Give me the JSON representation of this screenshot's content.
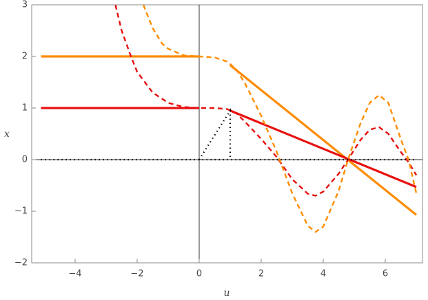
{
  "chart_data": {
    "type": "line",
    "x_label": "u",
    "y_label": "x",
    "xlim": [
      -5.4,
      7.2
    ],
    "ylim": [
      -2,
      3
    ],
    "xticks": [
      {
        "value": -4,
        "label": "−4"
      },
      {
        "value": -2,
        "label": "−2"
      },
      0,
      2,
      4,
      6
    ],
    "yticks": [
      {
        "value": -2,
        "label": "−2"
      },
      {
        "value": -1,
        "label": "−1"
      },
      0,
      1,
      2,
      3
    ],
    "series": [
      {
        "color": "#ff8c00",
        "style": "solid",
        "width": 3.2,
        "x": [
          -5.1,
          0,
          0.5,
          1,
          7
        ],
        "values": [
          2,
          2,
          null,
          1.83,
          -1.07
        ]
      },
      {
        "color": "#e81010",
        "style": "solid",
        "width": 3.2,
        "x": [
          -5.1,
          0,
          0.5,
          1,
          7
        ],
        "values": [
          1,
          1,
          null,
          0.95,
          -0.53
        ]
      },
      {
        "color": "#e81010",
        "style": "dashed",
        "width": 2.4,
        "x": [
          -2.7,
          -2.5,
          -2.2,
          -2.0,
          -1.5,
          -1.0,
          -0.5,
          0,
          0.5,
          0.9,
          1.2,
          1.5,
          2.0,
          2.5,
          3.0,
          3.5,
          3.75,
          4.0,
          4.5,
          4.8,
          5.2,
          5.5,
          5.8,
          6.1,
          6.5,
          6.75,
          7.0
        ],
        "values": [
          3,
          2.5,
          2.0,
          1.7,
          1.3,
          1.1,
          1.02,
          1.0,
          1.0,
          0.98,
          0.9,
          0.72,
          0.4,
          0.05,
          -0.38,
          -0.66,
          -0.7,
          -0.62,
          -0.27,
          0,
          0.38,
          0.58,
          0.63,
          0.5,
          0.15,
          -0.05,
          -0.3
        ]
      },
      {
        "color": "#ff8c00",
        "style": "dashed",
        "width": 2.4,
        "x": [
          -1.8,
          -1.5,
          -1.2,
          -1.0,
          -0.5,
          0,
          0.5,
          0.9,
          1.2,
          1.5,
          2.0,
          2.5,
          3.0,
          3.5,
          3.75,
          4.0,
          4.5,
          4.8,
          5.2,
          5.5,
          5.8,
          6.1,
          6.5,
          6.75,
          7.0
        ],
        "values": [
          3,
          2.55,
          2.25,
          2.15,
          2.02,
          2.0,
          1.98,
          1.9,
          1.75,
          1.45,
          0.85,
          0.15,
          -0.65,
          -1.28,
          -1.4,
          -1.3,
          -0.6,
          0,
          0.7,
          1.1,
          1.25,
          1.1,
          0.4,
          0,
          -0.65
        ]
      },
      {
        "color": "#000000",
        "style": "dotted",
        "width": 2.2,
        "x": [
          -5.1,
          7
        ],
        "values": [
          0,
          0
        ]
      },
      {
        "color": "#000000",
        "style": "dotted",
        "width": 2.2,
        "x": [
          0,
          1,
          1
        ],
        "values": [
          0,
          0.95,
          0
        ]
      }
    ]
  }
}
